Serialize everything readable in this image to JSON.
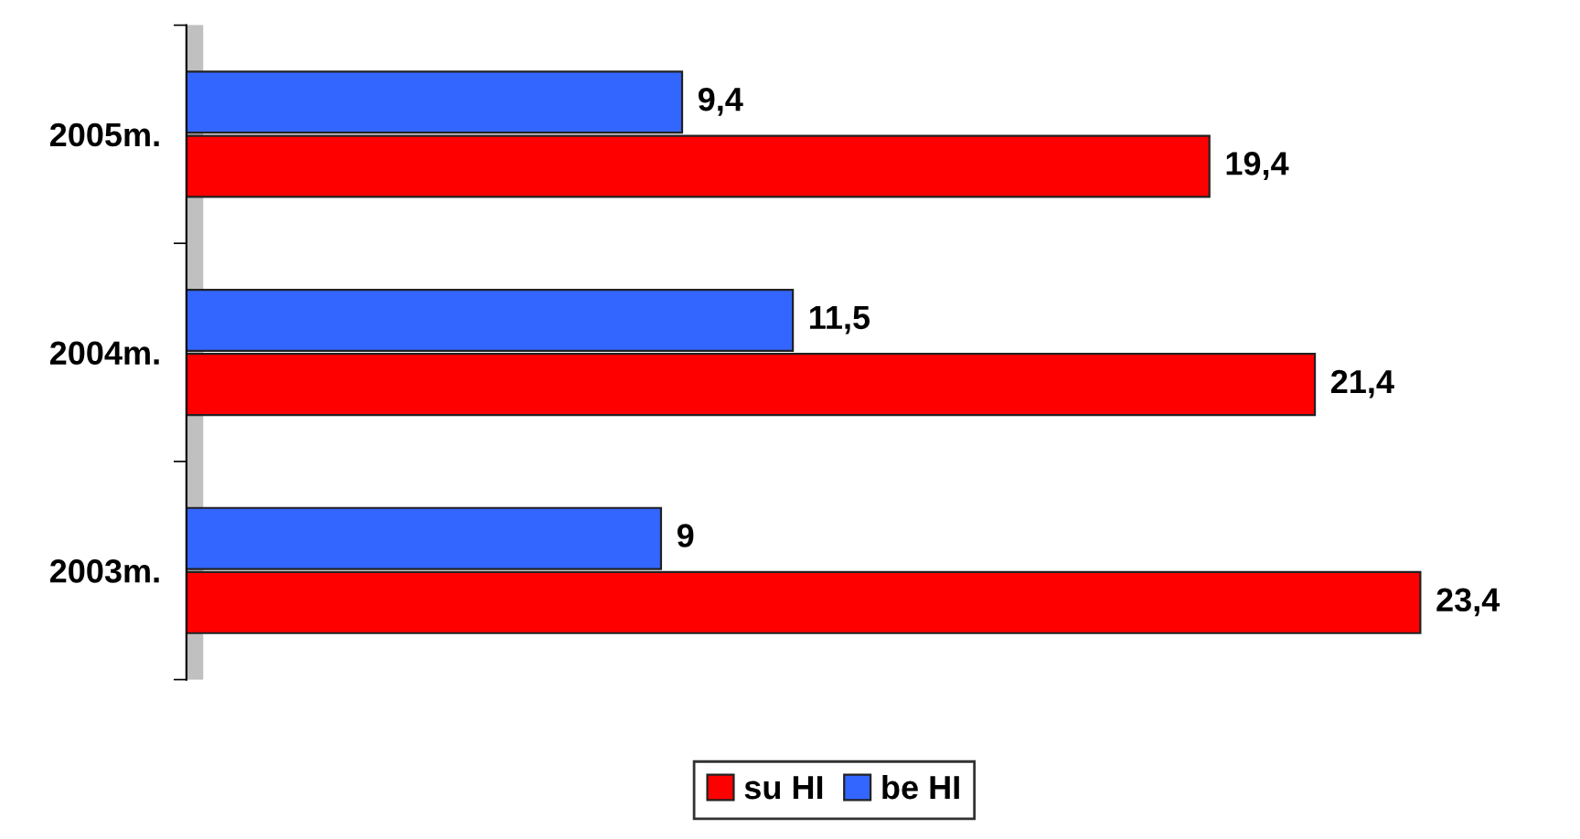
{
  "chart_data": {
    "type": "bar",
    "orientation": "horizontal",
    "categories": [
      "2005m.",
      "2004m.",
      "2003m."
    ],
    "series": [
      {
        "name": "su HI",
        "color": "#ff0000",
        "values": [
          19.4,
          21.4,
          23.4
        ],
        "value_labels": [
          "19,4",
          "21,4",
          "23,4"
        ]
      },
      {
        "name": "be HI",
        "color": "#3366ff",
        "values": [
          9.4,
          11.5,
          9
        ],
        "value_labels": [
          "9,4",
          "11,5",
          "9"
        ]
      }
    ],
    "legend": "bottom",
    "grid": false
  }
}
